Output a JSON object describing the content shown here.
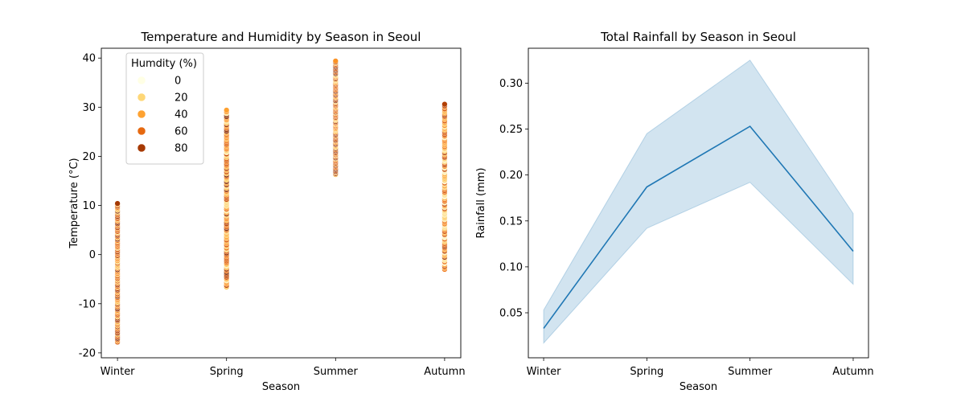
{
  "chart_data": [
    {
      "type": "scatter",
      "title": "Temperature and Humidity by Season in Seoul",
      "xlabel": "Season",
      "ylabel": "Temperature (°C)",
      "categories": [
        "Winter",
        "Spring",
        "Summer",
        "Autumn"
      ],
      "ylim": [
        -21,
        42
      ],
      "yticks": [
        -20,
        -10,
        0,
        10,
        20,
        30,
        40
      ],
      "legend": {
        "title": "Humdity (%)",
        "placement": "top-left",
        "entries": [
          {
            "label": "0",
            "humidity": 0
          },
          {
            "label": "20",
            "humidity": 20
          },
          {
            "label": "40",
            "humidity": 40
          },
          {
            "label": "60",
            "humidity": 60
          },
          {
            "label": "80",
            "humidity": 80
          }
        ]
      },
      "colormap": [
        "#ffffe5",
        "#fee391",
        "#fec44f",
        "#fe9929",
        "#ec7014",
        "#cc4c02",
        "#8c2d04",
        "#662506"
      ],
      "series": [
        {
          "category": "Winter",
          "temperature_range": [
            -17.8,
            10.4
          ],
          "humidity_range": [
            20,
            90
          ]
        },
        {
          "category": "Spring",
          "temperature_range": [
            -6.6,
            29.4
          ],
          "humidity_range": [
            10,
            90
          ]
        },
        {
          "category": "Summer",
          "temperature_range": [
            16.3,
            39.4
          ],
          "humidity_range": [
            20,
            90
          ]
        },
        {
          "category": "Autumn",
          "temperature_range": [
            -3.0,
            30.6
          ],
          "humidity_range": [
            5,
            80
          ]
        }
      ]
    },
    {
      "type": "line",
      "title": "Total Rainfall by Season in Seoul",
      "xlabel": "Season",
      "ylabel": "Rainfall (mm)",
      "categories": [
        "Winter",
        "Spring",
        "Summer",
        "Autumn"
      ],
      "ylim": [
        0.001,
        0.338
      ],
      "yticks": [
        0.05,
        0.1,
        0.15,
        0.2,
        0.25,
        0.3
      ],
      "ytick_labels": [
        "0.05",
        "0.10",
        "0.15",
        "0.20",
        "0.25",
        "0.30"
      ],
      "series": [
        {
          "values": [
            0.033,
            0.187,
            0.253,
            0.117
          ],
          "ci_lower": [
            0.017,
            0.142,
            0.192,
            0.081
          ],
          "ci_upper": [
            0.053,
            0.245,
            0.325,
            0.158
          ],
          "color": "#1f77b4",
          "band_color": "#1f77b4"
        }
      ]
    }
  ]
}
